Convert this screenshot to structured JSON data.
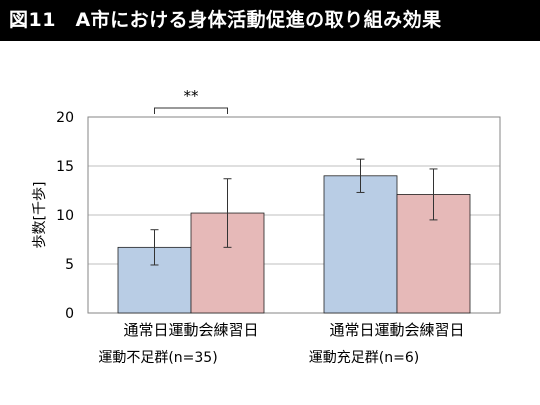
{
  "title": "図11　A市における身体活動促進の取り組み効果",
  "colors": {
    "title_bg": "#000000",
    "title_text": "#ffffff",
    "series_1": "#b9cde5",
    "series_2": "#e6b9b8",
    "bar_stroke": "#222222",
    "grid": "#bfbfbf",
    "axis_text": "#000000"
  },
  "chart_data": {
    "type": "bar",
    "ylabel": "歩数[千歩]",
    "ylim": [
      0,
      20
    ],
    "yticks": [
      0,
      5,
      10,
      15,
      20
    ],
    "grid": true,
    "categories": [
      "運動不足群(n=35)",
      "運動充足群(n=6)"
    ],
    "series": [
      {
        "name": "通常日",
        "values": [
          6.7,
          14.0
        ],
        "err": [
          1.8,
          1.7
        ]
      },
      {
        "name": "運動会練習日",
        "values": [
          10.2,
          12.1
        ],
        "err": [
          3.5,
          2.6
        ]
      }
    ],
    "significance": [
      {
        "group": 0,
        "label": "**"
      }
    ]
  }
}
